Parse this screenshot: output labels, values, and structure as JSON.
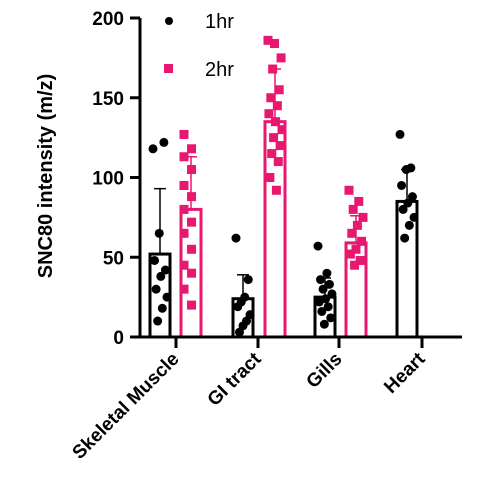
{
  "chart_data": {
    "type": "bar",
    "title": "",
    "xlabel": "",
    "ylabel": "SNC80 intensity (m/z)",
    "ylim": [
      0,
      200
    ],
    "yticks": [
      0,
      50,
      100,
      150,
      200
    ],
    "grid": false,
    "legend_position": "top-left",
    "categories": [
      "Skeletal Muscle",
      "GI tract",
      "Gills",
      "Heart"
    ],
    "series": [
      {
        "name": "1hr",
        "color": "#000000",
        "marker": "circle",
        "values": [
          52,
          24,
          25,
          85
        ],
        "error": [
          41,
          15,
          12,
          20
        ],
        "points": [
          [
            118,
            122,
            65,
            48,
            42,
            38,
            30,
            25,
            18,
            10
          ],
          [
            62,
            36,
            25,
            22,
            19,
            14,
            10,
            7,
            3
          ],
          [
            57,
            40,
            36,
            33,
            30,
            27,
            24,
            22,
            19,
            16,
            12,
            8
          ],
          [
            127,
            106,
            105,
            95,
            88,
            84,
            80,
            75,
            70,
            62
          ]
        ]
      },
      {
        "name": "2hr",
        "color": "#e8176f",
        "marker": "square",
        "values": [
          80,
          null,
          59,
          null
        ],
        "values_full": [
          80,
          135,
          59
        ],
        "error": [
          33,
          33,
          17
        ],
        "points": [
          [
            127,
            118,
            113,
            105,
            95,
            88,
            80,
            72,
            65,
            55,
            45,
            40,
            30,
            20
          ],
          [
            186,
            184,
            175,
            168,
            155,
            150,
            145,
            140,
            135,
            130,
            125,
            120,
            115,
            110,
            100,
            92
          ],
          [
            92,
            85,
            80,
            75,
            70,
            65,
            60,
            55,
            52,
            48,
            45
          ]
        ]
      }
    ]
  },
  "legend": {
    "items": [
      {
        "label": "1hr",
        "color": "#000000",
        "marker": "circle"
      },
      {
        "label": "2hr",
        "color": "#e8176f",
        "marker": "square"
      }
    ]
  }
}
